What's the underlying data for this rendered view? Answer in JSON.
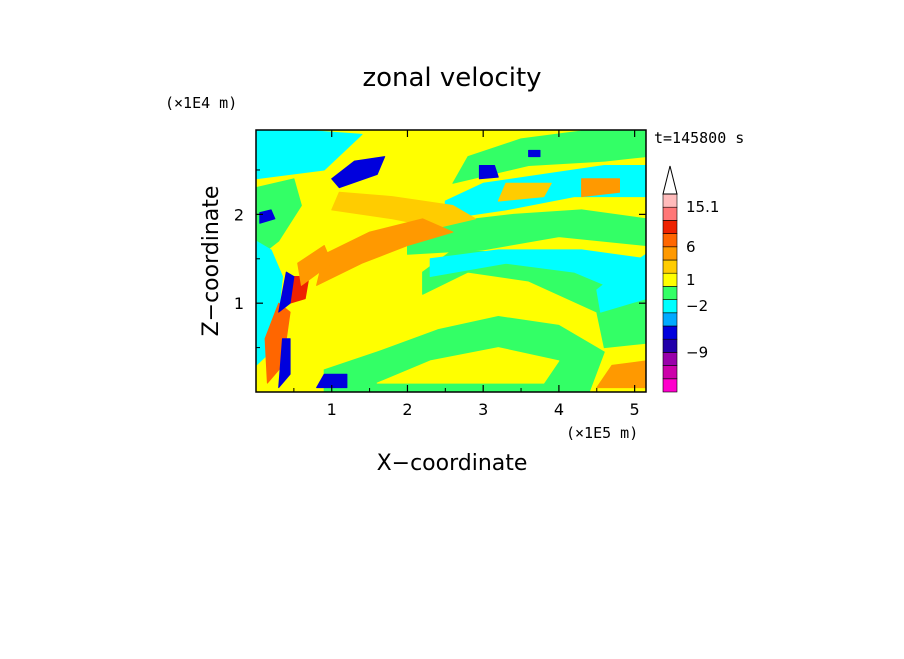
{
  "chart_data": {
    "type": "heatmap",
    "title": "zonal velocity",
    "xlabel": "X−coordinate",
    "ylabel": "Z−coordinate",
    "x_unit": "(×1E5 m)",
    "y_unit": "(×1E4 m)",
    "time_label": "t=145800 s",
    "xlim": [
      0,
      5.15
    ],
    "ylim": [
      0,
      2.95
    ],
    "x_ticks": [
      "1",
      "2",
      "3",
      "4",
      "5"
    ],
    "y_ticks": [
      "1",
      "2"
    ],
    "colorbar": {
      "levels": [
        {
          "color": "#ff00cc"
        },
        {
          "color": "#cc00aa"
        },
        {
          "color": "#9900aa"
        },
        {
          "color": "#2200aa"
        },
        {
          "color": "#0000dd"
        },
        {
          "color": "#00aaff"
        },
        {
          "color": "#00ffff"
        },
        {
          "color": "#33ff66"
        },
        {
          "color": "#ffff00"
        },
        {
          "color": "#ffcc00"
        },
        {
          "color": "#ff9900"
        },
        {
          "color": "#ff6600"
        },
        {
          "color": "#ee2200"
        },
        {
          "color": "#ff7777"
        },
        {
          "color": "#ffbbbb"
        }
      ],
      "labels": [
        "15.1",
        "6",
        "1",
        "−2",
        "−9"
      ],
      "extend": "max"
    },
    "regions": [
      {
        "kind": "band",
        "color": "#ffff00",
        "points": [
          [
            0,
            0
          ],
          [
            5.15,
            0
          ],
          [
            5.15,
            2.95
          ],
          [
            0,
            2.95
          ]
        ]
      },
      {
        "kind": "band",
        "color": "#33ff66",
        "points": [
          [
            0.9,
            0
          ],
          [
            4.4,
            0
          ],
          [
            4.6,
            0.45
          ],
          [
            4.0,
            0.75
          ],
          [
            3.2,
            0.85
          ],
          [
            2.4,
            0.7
          ],
          [
            1.6,
            0.45
          ],
          [
            0.9,
            0.25
          ]
        ]
      },
      {
        "kind": "band",
        "color": "#ffff00",
        "points": [
          [
            1.6,
            0.1
          ],
          [
            3.8,
            0.1
          ],
          [
            4.0,
            0.35
          ],
          [
            3.2,
            0.5
          ],
          [
            2.3,
            0.35
          ]
        ]
      },
      {
        "kind": "band",
        "color": "#33ff66",
        "points": [
          [
            2.2,
            1.1
          ],
          [
            2.8,
            1.35
          ],
          [
            3.6,
            1.25
          ],
          [
            4.5,
            0.9
          ],
          [
            4.6,
            0.5
          ],
          [
            5.15,
            0.55
          ],
          [
            5.15,
            1.05
          ],
          [
            4.6,
            1.45
          ],
          [
            3.7,
            1.55
          ],
          [
            2.6,
            1.6
          ],
          [
            2.2,
            1.35
          ]
        ]
      },
      {
        "kind": "band",
        "color": "#33ff66",
        "points": [
          [
            2.0,
            1.55
          ],
          [
            3.0,
            1.6
          ],
          [
            4.0,
            1.75
          ],
          [
            5.15,
            1.65
          ],
          [
            5.15,
            1.95
          ],
          [
            4.3,
            2.05
          ],
          [
            3.4,
            2.0
          ],
          [
            2.4,
            1.9
          ],
          [
            2.0,
            1.75
          ]
        ]
      },
      {
        "kind": "band",
        "color": "#00ffff",
        "points": [
          [
            2.3,
            1.3
          ],
          [
            3.3,
            1.45
          ],
          [
            4.2,
            1.35
          ],
          [
            4.9,
            1.1
          ],
          [
            5.15,
            1.15
          ],
          [
            5.15,
            1.5
          ],
          [
            4.3,
            1.6
          ],
          [
            3.2,
            1.6
          ],
          [
            2.3,
            1.5
          ]
        ]
      },
      {
        "kind": "band",
        "color": "#00ffff",
        "points": [
          [
            2.5,
            1.95
          ],
          [
            3.3,
            2.05
          ],
          [
            4.2,
            2.2
          ],
          [
            5.15,
            2.2
          ],
          [
            5.15,
            2.55
          ],
          [
            4.6,
            2.55
          ],
          [
            3.8,
            2.45
          ],
          [
            3.0,
            2.35
          ],
          [
            2.5,
            2.15
          ]
        ]
      },
      {
        "kind": "band",
        "color": "#33ff66",
        "points": [
          [
            2.6,
            2.35
          ],
          [
            3.6,
            2.55
          ],
          [
            4.6,
            2.6
          ],
          [
            5.15,
            2.65
          ],
          [
            5.15,
            2.95
          ],
          [
            4.4,
            2.95
          ],
          [
            3.5,
            2.85
          ],
          [
            2.8,
            2.65
          ]
        ]
      },
      {
        "kind": "band",
        "color": "#ffcc00",
        "points": [
          [
            1.0,
            2.05
          ],
          [
            1.8,
            1.95
          ],
          [
            2.4,
            1.85
          ],
          [
            2.9,
            1.95
          ],
          [
            2.6,
            2.1
          ],
          [
            1.8,
            2.2
          ],
          [
            1.1,
            2.25
          ]
        ]
      },
      {
        "kind": "band",
        "color": "#ff9900",
        "points": [
          [
            0.8,
            1.2
          ],
          [
            1.4,
            1.45
          ],
          [
            2.0,
            1.65
          ],
          [
            2.6,
            1.8
          ],
          [
            2.2,
            1.95
          ],
          [
            1.5,
            1.8
          ],
          [
            0.9,
            1.55
          ]
        ]
      },
      {
        "kind": "band",
        "color": "#ffcc00",
        "points": [
          [
            3.2,
            2.15
          ],
          [
            3.8,
            2.2
          ],
          [
            3.9,
            2.35
          ],
          [
            3.3,
            2.35
          ]
        ]
      },
      {
        "kind": "band",
        "color": "#ff9900",
        "points": [
          [
            4.3,
            2.2
          ],
          [
            4.8,
            2.25
          ],
          [
            4.8,
            2.4
          ],
          [
            4.3,
            2.4
          ]
        ]
      },
      {
        "kind": "band",
        "color": "#ff9900",
        "points": [
          [
            4.5,
            0.05
          ],
          [
            5.15,
            0.05
          ],
          [
            5.15,
            0.35
          ],
          [
            4.7,
            0.3
          ]
        ]
      },
      {
        "kind": "band",
        "color": "#00ffff",
        "points": [
          [
            0,
            2.4
          ],
          [
            0.9,
            2.5
          ],
          [
            1.4,
            2.9
          ],
          [
            0.6,
            2.95
          ],
          [
            0,
            2.95
          ]
        ]
      },
      {
        "kind": "band",
        "color": "#33ff66",
        "points": [
          [
            0,
            1.5
          ],
          [
            0.3,
            1.7
          ],
          [
            0.6,
            2.1
          ],
          [
            0.5,
            2.4
          ],
          [
            0,
            2.3
          ]
        ]
      },
      {
        "kind": "band",
        "color": "#00ffff",
        "points": [
          [
            0,
            0.3
          ],
          [
            0.25,
            0.5
          ],
          [
            0.35,
            1.3
          ],
          [
            0.2,
            1.6
          ],
          [
            0,
            1.7
          ]
        ]
      },
      {
        "kind": "band",
        "color": "#ff6600",
        "points": [
          [
            0.15,
            0.1
          ],
          [
            0.35,
            0.3
          ],
          [
            0.45,
            0.9
          ],
          [
            0.3,
            1.0
          ],
          [
            0.12,
            0.6
          ]
        ]
      },
      {
        "kind": "band",
        "color": "#ee2200",
        "points": [
          [
            0.45,
            1.0
          ],
          [
            0.65,
            1.05
          ],
          [
            0.7,
            1.3
          ],
          [
            0.5,
            1.3
          ]
        ]
      },
      {
        "kind": "band",
        "color": "#ff9900",
        "points": [
          [
            0.6,
            1.2
          ],
          [
            1.0,
            1.45
          ],
          [
            0.9,
            1.65
          ],
          [
            0.55,
            1.45
          ]
        ]
      },
      {
        "kind": "band",
        "color": "#00ffff",
        "points": [
          [
            4.55,
            0.9
          ],
          [
            5.15,
            1.05
          ],
          [
            5.15,
            1.55
          ],
          [
            4.8,
            1.35
          ],
          [
            4.5,
            1.15
          ]
        ]
      },
      {
        "kind": "blob",
        "color": "#0000dd",
        "points": [
          [
            1.1,
            2.3
          ],
          [
            1.6,
            2.45
          ],
          [
            1.7,
            2.65
          ],
          [
            1.3,
            2.6
          ],
          [
            1.0,
            2.4
          ]
        ]
      },
      {
        "kind": "blob",
        "color": "#0000dd",
        "points": [
          [
            0.3,
            0.9
          ],
          [
            0.45,
            1.0
          ],
          [
            0.5,
            1.3
          ],
          [
            0.4,
            1.35
          ]
        ]
      },
      {
        "kind": "blob",
        "color": "#0000dd",
        "points": [
          [
            0.3,
            0.05
          ],
          [
            0.45,
            0.2
          ],
          [
            0.45,
            0.6
          ],
          [
            0.35,
            0.6
          ]
        ]
      },
      {
        "kind": "blob",
        "color": "#0000dd",
        "points": [
          [
            0.8,
            0.05
          ],
          [
            1.2,
            0.05
          ],
          [
            1.2,
            0.2
          ],
          [
            0.9,
            0.2
          ]
        ]
      },
      {
        "kind": "blob",
        "color": "#0000dd",
        "points": [
          [
            2.95,
            2.4
          ],
          [
            3.2,
            2.42
          ],
          [
            3.15,
            2.55
          ],
          [
            2.95,
            2.55
          ]
        ]
      },
      {
        "kind": "blob",
        "color": "#0000dd",
        "points": [
          [
            0.05,
            1.9
          ],
          [
            0.25,
            1.95
          ],
          [
            0.2,
            2.05
          ],
          [
            0.05,
            2.02
          ]
        ]
      },
      {
        "kind": "blob",
        "color": "#0000dd",
        "points": [
          [
            3.6,
            2.65
          ],
          [
            3.75,
            2.65
          ],
          [
            3.75,
            2.72
          ],
          [
            3.6,
            2.72
          ]
        ]
      }
    ]
  }
}
